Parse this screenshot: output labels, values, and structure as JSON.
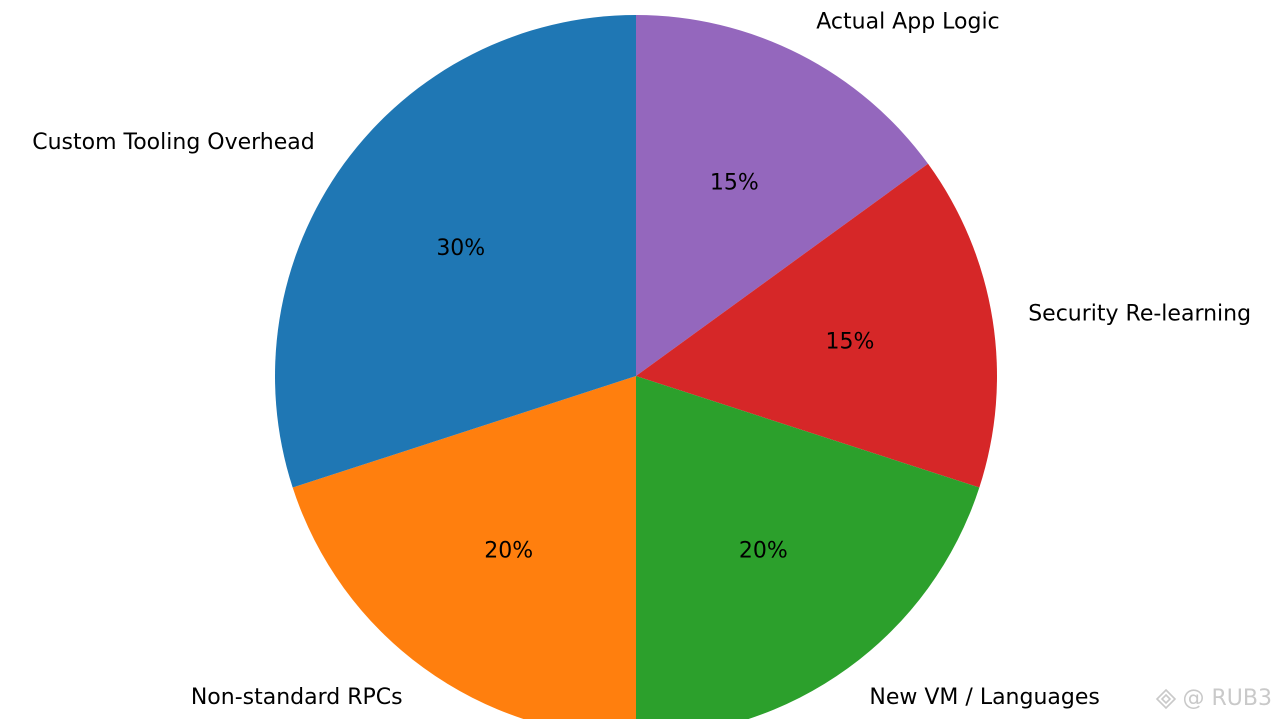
{
  "chart_data": {
    "type": "pie",
    "slices": [
      {
        "label": "Actual App Logic",
        "value": 15,
        "pct_label": "15%",
        "color": "#9467bd"
      },
      {
        "label": "Security Re-learning",
        "value": 15,
        "pct_label": "15%",
        "color": "#d62728"
      },
      {
        "label": "New VM / Languages",
        "value": 20,
        "pct_label": "20%",
        "color": "#2ca02c"
      },
      {
        "label": "Non-standard RPCs",
        "value": 20,
        "pct_label": "20%",
        "color": "#ff7f0e"
      },
      {
        "label": "Custom Tooling Overhead",
        "value": 30,
        "pct_label": "30%",
        "color": "#1f77b4"
      }
    ],
    "start_angle": "12 o'clock",
    "direction": "clockwise"
  },
  "watermark": {
    "text": "@ RUB3",
    "icon": "diamond-logo-icon"
  }
}
